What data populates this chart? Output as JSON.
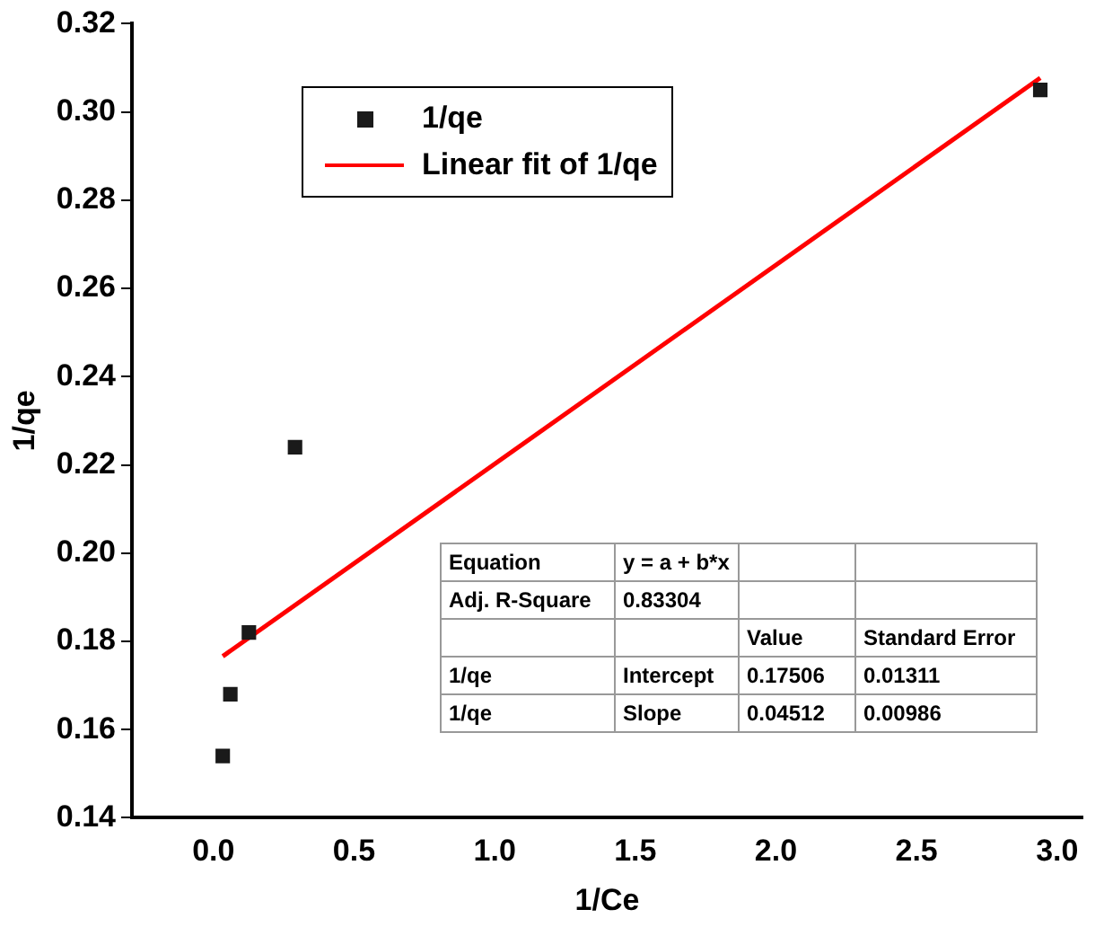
{
  "chart_data": {
    "type": "scatter",
    "xlabel": "1/Ce",
    "ylabel": "1/qe",
    "xlim": [
      -0.29,
      3.09
    ],
    "xticks": [
      {
        "value": 0,
        "label": "0.0"
      },
      {
        "value": 0.5,
        "label": "0.5"
      },
      {
        "value": 1,
        "label": "1.0"
      },
      {
        "value": 1.5,
        "label": "1.5"
      },
      {
        "value": 2,
        "label": "2.0"
      },
      {
        "value": 2.5,
        "label": "2.5"
      },
      {
        "value": 3,
        "label": "3.0"
      }
    ],
    "ylim": [
      0.14,
      0.32
    ],
    "yticks": [
      {
        "value": 0.14,
        "label": "0.14"
      },
      {
        "value": 0.16,
        "label": "0.16"
      },
      {
        "value": 0.18,
        "label": "0.18"
      },
      {
        "value": 0.2,
        "label": "0.20"
      },
      {
        "value": 0.22,
        "label": "0.22"
      },
      {
        "value": 0.24,
        "label": "0.24"
      },
      {
        "value": 0.26,
        "label": "0.26"
      },
      {
        "value": 0.28,
        "label": "0.28"
      },
      {
        "value": 0.3,
        "label": "0.30"
      },
      {
        "value": 0.32,
        "label": "0.32"
      }
    ],
    "series": [
      {
        "name": "1/qe",
        "type": "scatter",
        "marker": "square",
        "color": "#1a1a1a",
        "x": [
          0.033,
          0.06,
          0.126,
          0.29,
          2.94
        ],
        "values": [
          0.154,
          0.168,
          0.182,
          0.224,
          0.305
        ]
      },
      {
        "name": "Linear fit of 1/qe",
        "type": "line",
        "marker": "none",
        "color": "#ff0000",
        "x": [
          0.033,
          2.94
        ],
        "values": [
          0.1766,
          0.3077
        ]
      }
    ],
    "legend": "top left",
    "grid": false,
    "annotations": [
      "Equation",
      "y = a + b*x",
      "Adj. R-Square",
      "0.83304",
      "Value",
      "Standard Error",
      "1/qe",
      "Intercept",
      "0.17506",
      "0.01311",
      "1/qe",
      "Slope",
      "0.04512",
      "0.00986"
    ]
  }
}
